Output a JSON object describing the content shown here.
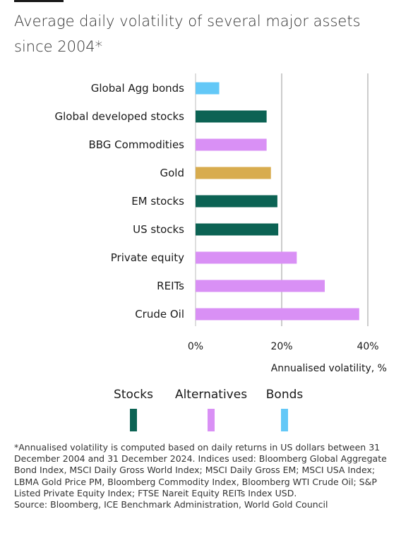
{
  "header": {
    "title": "Average daily volatility of several major assets since 2004*"
  },
  "chart_data": {
    "type": "bar",
    "orientation": "horizontal",
    "categories": [
      "Global Agg bonds",
      "Global developed stocks",
      "BBG Commodities",
      "Gold",
      "EM stocks",
      "US stocks",
      "Private equity",
      "REITs",
      "Crude Oil"
    ],
    "values": [
      5.5,
      16.5,
      16.5,
      17.5,
      19.0,
      19.2,
      23.5,
      30.0,
      38.0
    ],
    "groups": [
      "Bonds",
      "Stocks",
      "Alternatives",
      "Alternatives",
      "Stocks",
      "Stocks",
      "Alternatives",
      "Alternatives",
      "Alternatives"
    ],
    "xlabel": "Annualised volatility, %",
    "xlim": [
      0,
      44
    ],
    "xticks": [
      0,
      20,
      40
    ],
    "xtick_labels": [
      "0%",
      "20%",
      "40%"
    ],
    "grid": true,
    "legend": [
      {
        "name": "Stocks",
        "color": "#0c6354"
      },
      {
        "name": "Alternatives",
        "color": "#d990f5"
      },
      {
        "name": "Bonds",
        "color": "#63c8f7"
      }
    ],
    "colors": {
      "Stocks": "#0c6354",
      "Alternatives": "#d990f5",
      "Bonds": "#63c8f7",
      "Gold": "#d8ac4e"
    }
  },
  "footnote": {
    "lines": [
      "*Annualised volatility is computed based on daily returns in US dollars between 31 December 2004 and 31 December 2024. Indices used: Bloomberg Global Aggregate Bond Index, MSCI Daily Gross World Index; MSCI Daily Gross EM; MSCI USA Index; LBMA Gold Price PM, Bloomberg Commodity Index, Bloomberg WTI Crude Oil; S&P Listed Private Equity Index; FTSE Nareit Equity REITs Index USD.",
      "Source: Bloomberg, ICE Benchmark Administration, World Gold Council"
    ]
  }
}
